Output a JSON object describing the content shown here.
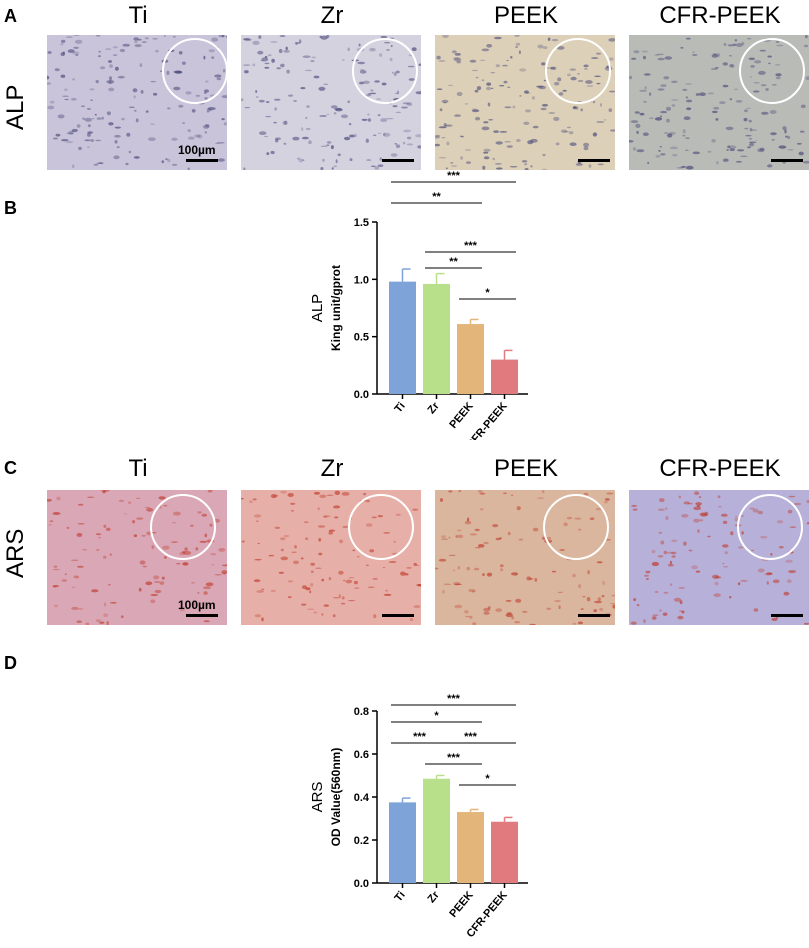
{
  "panels": {
    "a": "A",
    "b": "B",
    "c": "C",
    "d": "D"
  },
  "micrographs": {
    "columns": [
      "Ti",
      "Zr",
      "PEEK",
      "CFR-PEEK"
    ],
    "row_alp": "ALP",
    "row_ars": "ARS",
    "scale": "100µm",
    "alp_colors": [
      "#c9c4d9",
      "#d5d2e0",
      "#dcd0b8",
      "#b9bcb6"
    ],
    "ars_colors": [
      "#d9a7b5",
      "#e6b0a8",
      "#d9b69d",
      "#b7b0d8"
    ]
  },
  "chart_data": [
    {
      "type": "bar",
      "categories": [
        "Ti",
        "Zr",
        "PEEK",
        "CFR-PEEK"
      ],
      "values": [
        0.98,
        0.96,
        0.61,
        0.3
      ],
      "errors": [
        0.11,
        0.09,
        0.04,
        0.08
      ],
      "colors": [
        "#7da3d8",
        "#b8e08a",
        "#e3b57a",
        "#e07a7f"
      ],
      "ylabel": "ALP",
      "ylabel2": "King unit/gprot",
      "ylim": [
        0,
        1.5
      ],
      "yticks": [
        "0.0",
        "0.5",
        "1.0",
        "1.5"
      ],
      "ytick_values": [
        0,
        0.5,
        1.0,
        1.5
      ],
      "significance": [
        {
          "from": 0,
          "to": 3,
          "label": "***"
        },
        {
          "from": 0,
          "to": 2,
          "label": "**"
        },
        {
          "from": 1,
          "to": 3,
          "label": "***"
        },
        {
          "from": 1,
          "to": 2,
          "label": "**"
        },
        {
          "from": 2,
          "to": 3,
          "label": "*"
        }
      ]
    },
    {
      "type": "bar",
      "categories": [
        "Ti",
        "Zr",
        "PEEK",
        "CFR-PEEK"
      ],
      "values": [
        0.375,
        0.485,
        0.33,
        0.285
      ],
      "errors": [
        0.02,
        0.015,
        0.012,
        0.02
      ],
      "colors": [
        "#7da3d8",
        "#b8e08a",
        "#e3b57a",
        "#e07a7f"
      ],
      "ylabel": "ARS",
      "ylabel2": "OD Value(560nm)",
      "ylim": [
        0,
        0.8
      ],
      "yticks": [
        "0.0",
        "0.2",
        "0.4",
        "0.6",
        "0.8"
      ],
      "ytick_values": [
        0,
        0.2,
        0.4,
        0.6,
        0.8
      ],
      "significance": [
        {
          "from": 0,
          "to": 3,
          "label": "***"
        },
        {
          "from": 0,
          "to": 2,
          "label": "*"
        },
        {
          "from": 0,
          "to": 1,
          "label": "***"
        },
        {
          "from": 1,
          "to": 3,
          "label": "***"
        },
        {
          "from": 1,
          "to": 2,
          "label": "***"
        },
        {
          "from": 2,
          "to": 3,
          "label": "*"
        }
      ]
    }
  ]
}
